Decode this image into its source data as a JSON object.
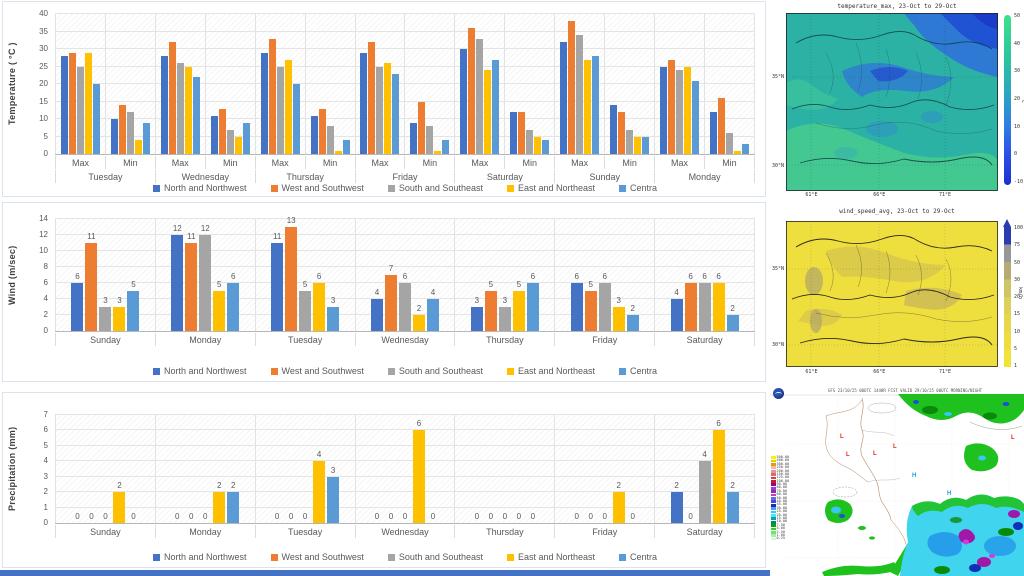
{
  "legend": {
    "items": [
      {
        "label": "North and Northwest",
        "color": "#4472C4"
      },
      {
        "label": "West and Southwest",
        "color": "#ED7D31"
      },
      {
        "label": "South and Southeast",
        "color": "#A5A5A5"
      },
      {
        "label": "East and Northeast",
        "color": "#FFC000"
      },
      {
        "label": "Centra",
        "color": "#5B9BD5"
      }
    ]
  },
  "chart_data": [
    {
      "id": "temperature",
      "type": "bar",
      "ylabel": "Temperature ( °C )",
      "ymin": 0,
      "ymax": 40,
      "ystep": 5,
      "grid": true,
      "legend_position": "bottom",
      "days": [
        "Tuesday",
        "Wednesday",
        "Thursday",
        "Friday",
        "Saturday",
        "Sunday",
        "Monday"
      ],
      "subgroups": [
        "Max",
        "Min"
      ],
      "show_labels": false,
      "series_names": [
        "North and Northwest",
        "West and Southwest",
        "South and Southeast",
        "East and Northeast",
        "Centra"
      ],
      "groups": [
        {
          "day": "Tuesday",
          "sub": "Max",
          "values": [
            28,
            29,
            25,
            29,
            20
          ]
        },
        {
          "day": "Tuesday",
          "sub": "Min",
          "values": [
            10,
            14,
            12,
            4,
            9
          ]
        },
        {
          "day": "Wednesday",
          "sub": "Max",
          "values": [
            28,
            32,
            26,
            25,
            22
          ]
        },
        {
          "day": "Wednesday",
          "sub": "Min",
          "values": [
            11,
            13,
            7,
            5,
            9
          ]
        },
        {
          "day": "Thursday",
          "sub": "Max",
          "values": [
            29,
            33,
            25,
            27,
            20
          ]
        },
        {
          "day": "Thursday",
          "sub": "Min",
          "values": [
            11,
            13,
            8,
            1,
            4
          ]
        },
        {
          "day": "Friday",
          "sub": "Max",
          "values": [
            29,
            32,
            25,
            26,
            23
          ]
        },
        {
          "day": "Friday",
          "sub": "Min",
          "values": [
            9,
            15,
            8,
            1,
            4
          ]
        },
        {
          "day": "Saturday",
          "sub": "Max",
          "values": [
            30,
            36,
            33,
            24,
            27
          ]
        },
        {
          "day": "Saturday",
          "sub": "Min",
          "values": [
            12,
            12,
            7,
            5,
            4
          ]
        },
        {
          "day": "Sunday",
          "sub": "Max",
          "values": [
            32,
            38,
            34,
            27,
            28
          ]
        },
        {
          "day": "Sunday",
          "sub": "Min",
          "values": [
            14,
            12,
            7,
            5,
            5
          ]
        },
        {
          "day": "Monday",
          "sub": "Max",
          "values": [
            25,
            27,
            24,
            25,
            21
          ]
        },
        {
          "day": "Monday",
          "sub": "Min",
          "values": [
            12,
            16,
            6,
            1,
            3
          ]
        }
      ]
    },
    {
      "id": "wind",
      "type": "bar",
      "ylabel": "Wind (m/sec)",
      "ymin": 0,
      "ymax": 14,
      "ystep": 2,
      "grid": true,
      "legend_position": "bottom",
      "days": [
        "Sunday",
        "Monday",
        "Tuesday",
        "Wednesday",
        "Thursday",
        "Friday",
        "Saturday"
      ],
      "show_labels": true,
      "series_names": [
        "North and Northwest",
        "West and Southwest",
        "South and Southeast",
        "East and Northeast",
        "Centra"
      ],
      "groups": [
        {
          "day": "Sunday",
          "values": [
            6,
            11,
            3,
            3,
            5
          ]
        },
        {
          "day": "Monday",
          "values": [
            12,
            11,
            12,
            5,
            6
          ]
        },
        {
          "day": "Tuesday",
          "values": [
            11,
            13,
            5,
            6,
            3
          ]
        },
        {
          "day": "Wednesday",
          "values": [
            4,
            7,
            6,
            2,
            4
          ]
        },
        {
          "day": "Thursday",
          "values": [
            3,
            5,
            3,
            5,
            6
          ]
        },
        {
          "day": "Friday",
          "values": [
            6,
            5,
            6,
            3,
            2
          ]
        },
        {
          "day": "Saturday",
          "values": [
            4,
            6,
            6,
            6,
            2
          ]
        }
      ]
    },
    {
      "id": "precipitation",
      "type": "bar",
      "ylabel": "Precipitation  (mm)",
      "ymin": 0,
      "ymax": 7,
      "ystep": 1,
      "grid": true,
      "legend_position": "bottom",
      "days": [
        "Sunday",
        "Monday",
        "Tuesday",
        "Wednesday",
        "Thursday",
        "Friday",
        "Saturday"
      ],
      "show_labels": true,
      "series_names": [
        "North and Northwest",
        "West and Southwest",
        "South and Southeast",
        "East and Northeast",
        "Centra"
      ],
      "groups": [
        {
          "day": "Sunday",
          "values": [
            0,
            0,
            0,
            2,
            0
          ]
        },
        {
          "day": "Monday",
          "values": [
            0,
            0,
            0,
            2,
            2
          ]
        },
        {
          "day": "Tuesday",
          "values": [
            0,
            0,
            0,
            4,
            3
          ]
        },
        {
          "day": "Wednesday",
          "values": [
            0,
            0,
            0,
            6,
            0
          ]
        },
        {
          "day": "Thursday",
          "values": [
            0,
            0,
            0,
            0,
            0
          ]
        },
        {
          "day": "Friday",
          "values": [
            0,
            0,
            0,
            2,
            0
          ]
        },
        {
          "day": "Saturday",
          "values": [
            2,
            0,
            4,
            6,
            2
          ]
        }
      ]
    }
  ],
  "maps": {
    "temperature_map": {
      "title": "temperature_max, 23-Oct to 29-Oct",
      "colorbar_ticks": [
        "50",
        "40",
        "30",
        "20",
        "10",
        "0",
        "-10"
      ],
      "colorbar_unit": "°C",
      "lat_ticks": [
        "35°N",
        "30°N"
      ],
      "lon_ticks": [
        "61°E",
        "66°E",
        "71°E"
      ]
    },
    "wind_map": {
      "title": "wind_speed_avg, 23-Oct to 29-Oct",
      "colorbar_ticks": [
        "100",
        "75",
        "50",
        "30",
        "20",
        "15",
        "10",
        "5",
        "1"
      ],
      "colorbar_unit": "km/h",
      "lat_ticks": [
        "35°N",
        "30°N"
      ],
      "lon_ticks": [
        "61°E",
        "66°E",
        "71°E"
      ]
    },
    "precipitation_map": {
      "title": "GFS 23/10/25 00UTC 144HR FCST VALID 29/10/25 00UTC MORNING/NIGHT",
      "pressure_low": "L",
      "pressure_high": "H",
      "legend_values": [
        "500.00",
        "400.00",
        "300.00",
        "250.00",
        "200.00",
        "150.00",
        "125.00",
        "100.00",
        "90.00",
        "80.00",
        "70.00",
        "60.00",
        "50.00",
        "40.00",
        "35.00",
        "30.00",
        "25.00",
        "20.00",
        "15.00",
        "10.00",
        "7.50",
        "5.00",
        "2.50",
        "1.00",
        "0.25"
      ],
      "legend_colors": [
        "#f8f400",
        "#eccc00",
        "#e09c00",
        "#efb9b9",
        "#e89494",
        "#e06868",
        "#d84040",
        "#c02020",
        "#930093",
        "#a838c8",
        "#7838a8",
        "#c838c8",
        "#6868e8",
        "#4848d8",
        "#2828b8",
        "#38a8f0",
        "#38c8f0",
        "#48e8f8",
        "#00a8a8",
        "#008868",
        "#00a800",
        "#38c838",
        "#68e868",
        "#a8f0a8",
        "#d8f8d8"
      ]
    }
  },
  "colors": {
    "bottom_strip": "#4472C4",
    "panel_border": "#dde3ec"
  }
}
